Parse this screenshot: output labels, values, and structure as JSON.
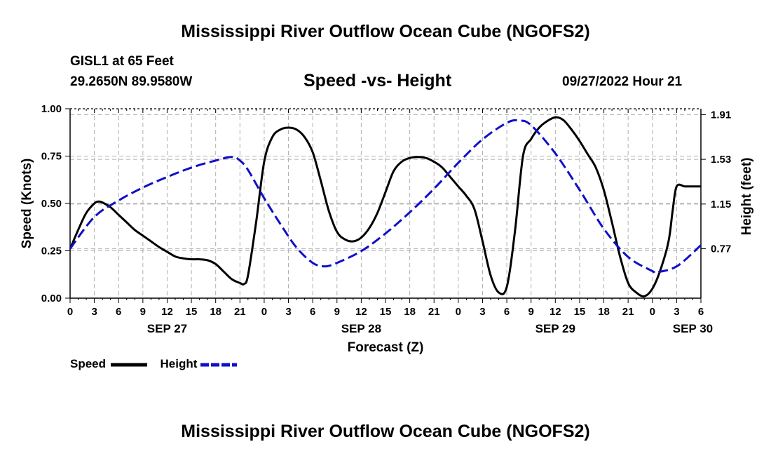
{
  "header": {
    "title": "Mississippi River Outflow Ocean Cube (NGOFS2)",
    "station": "GISL1 at 65 Feet",
    "coords": "29.2650N  89.9580W",
    "chart_title": "Speed -vs- Height",
    "datetime": "09/27/2022 Hour 21"
  },
  "footer": {
    "title": "Mississippi River Outflow Ocean Cube (NGOFS2)"
  },
  "legend": {
    "speed_label": "Speed",
    "height_label": "Height"
  },
  "colors": {
    "speed": "#000000",
    "height": "#1010c8",
    "grid": "#b0b0b0"
  },
  "chart_data": {
    "type": "line",
    "xlabel": "Forecast (Z)",
    "ylabel": "Speed (Knots)",
    "y2label": "Height (feet)",
    "xlim": [
      0,
      78
    ],
    "ylim": [
      0,
      1.0
    ],
    "y2lim": [
      0.35,
      1.96
    ],
    "x_ticks": [
      0,
      3,
      6,
      9,
      12,
      15,
      18,
      21,
      24,
      27,
      30,
      33,
      36,
      39,
      42,
      45,
      48,
      51,
      54,
      57,
      60,
      63,
      66,
      69,
      72,
      75,
      78
    ],
    "x_tick_labels": [
      "0",
      "3",
      "6",
      "9",
      "12",
      "15",
      "18",
      "21",
      "0",
      "3",
      "6",
      "9",
      "12",
      "15",
      "18",
      "21",
      "0",
      "3",
      "6",
      "9",
      "12",
      "15",
      "18",
      "21",
      "0",
      "3",
      "6"
    ],
    "date_labels": [
      {
        "x": 12,
        "label": "SEP 27"
      },
      {
        "x": 36,
        "label": "SEP 28"
      },
      {
        "x": 60,
        "label": "SEP 29"
      },
      {
        "x": 77,
        "label": "SEP 30"
      }
    ],
    "y_ticks": [
      0.0,
      0.25,
      0.5,
      0.75,
      1.0
    ],
    "y_tick_labels": [
      "0.00",
      "0.25",
      "0.50",
      "0.75",
      "1.00"
    ],
    "y2_ticks": [
      0.77,
      1.15,
      1.53,
      1.91
    ],
    "y2_tick_labels": [
      "0.77",
      "1.15",
      "1.53",
      "1.91"
    ],
    "series": [
      {
        "name": "Speed",
        "axis": "left",
        "style": "solid",
        "x": [
          0,
          1,
          2,
          3,
          3.5,
          4,
          5,
          6,
          7,
          8,
          9,
          10,
          11,
          12,
          13,
          14,
          15,
          16,
          17,
          18,
          19,
          20,
          21,
          21.5,
          22,
          23,
          24,
          25,
          26,
          27,
          28,
          29,
          30,
          31,
          32,
          33,
          34,
          35,
          36,
          37,
          38,
          39,
          40,
          41,
          42,
          43,
          44,
          45,
          46,
          47,
          48,
          49,
          50,
          51,
          52,
          53,
          54,
          55,
          56,
          57,
          58,
          59,
          60,
          61,
          62,
          63,
          64,
          65,
          66,
          67,
          68,
          69,
          70,
          71,
          72,
          73,
          74,
          74.5,
          75,
          76,
          77,
          78
        ],
        "values": [
          0.26,
          0.36,
          0.45,
          0.5,
          0.51,
          0.505,
          0.48,
          0.44,
          0.4,
          0.36,
          0.33,
          0.3,
          0.27,
          0.245,
          0.22,
          0.21,
          0.205,
          0.205,
          0.2,
          0.18,
          0.14,
          0.1,
          0.08,
          0.075,
          0.12,
          0.4,
          0.72,
          0.85,
          0.89,
          0.9,
          0.89,
          0.85,
          0.77,
          0.62,
          0.46,
          0.35,
          0.31,
          0.3,
          0.32,
          0.37,
          0.45,
          0.56,
          0.67,
          0.72,
          0.74,
          0.745,
          0.74,
          0.72,
          0.69,
          0.64,
          0.59,
          0.54,
          0.47,
          0.3,
          0.12,
          0.03,
          0.06,
          0.35,
          0.75,
          0.84,
          0.9,
          0.935,
          0.955,
          0.94,
          0.89,
          0.83,
          0.76,
          0.69,
          0.57,
          0.4,
          0.22,
          0.08,
          0.03,
          0.01,
          0.05,
          0.15,
          0.3,
          0.46,
          0.59,
          0.59,
          0.59,
          0.59
        ],
        "values_note": "estimated from curve"
      },
      {
        "name": "Height",
        "axis": "right",
        "style": "dashed",
        "x": [
          0,
          3,
          6,
          9,
          12,
          15,
          18,
          20,
          21,
          22,
          24,
          26,
          28,
          30,
          31.5,
          33,
          36,
          39,
          42,
          45,
          48,
          51,
          54,
          55.5,
          57,
          60,
          63,
          66,
          69,
          72,
          72.5,
          75,
          78
        ],
        "values": [
          0.77,
          1.04,
          1.18,
          1.29,
          1.38,
          1.46,
          1.52,
          1.55,
          1.52,
          1.44,
          1.2,
          0.98,
          0.78,
          0.65,
          0.62,
          0.65,
          0.75,
          0.9,
          1.08,
          1.28,
          1.5,
          1.7,
          1.84,
          1.86,
          1.82,
          1.58,
          1.27,
          0.94,
          0.7,
          0.58,
          0.57,
          0.62,
          0.8
        ],
        "values_note": "estimated from curve"
      }
    ]
  }
}
